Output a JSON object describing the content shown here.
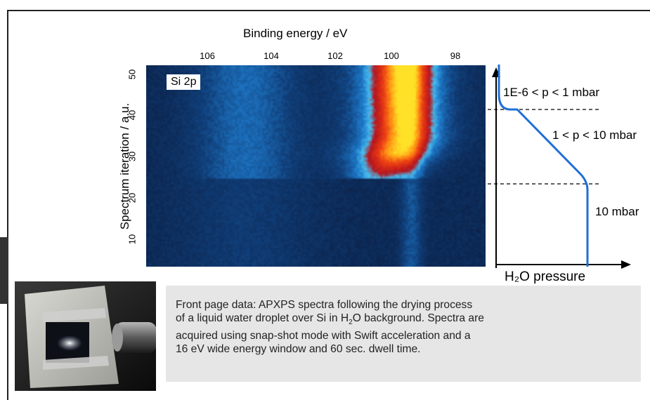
{
  "chart_data": [
    {
      "type": "heatmap",
      "xlabel": "Binding energy / eV",
      "ylabel": "Spectrum iteration / a.u.",
      "x_ticks": [
        106,
        104,
        102,
        100,
        98
      ],
      "y_ticks": [
        10,
        20,
        30,
        40,
        50
      ],
      "xlim": [
        107.3,
        96.7
      ],
      "ylim": [
        4,
        52
      ],
      "annotation": "Si 2p",
      "features": [
        {
          "type": "peak",
          "center_eV": 99.4,
          "iterations": [
            25,
            52
          ],
          "intensity": "high"
        },
        {
          "type": "broad_band",
          "center_eV": 104.2,
          "iterations": [
            25,
            52
          ],
          "intensity": "low"
        },
        {
          "type": "edge",
          "eV": 99.0,
          "iterations": [
            4,
            52
          ],
          "intensity": "low"
        }
      ],
      "colormap": "dark blue to cyan to red to yellow"
    },
    {
      "type": "line",
      "xlabel": "H₂O pressure",
      "ylabel": "",
      "regions": [
        {
          "label": "1E-6 < p < 1 mbar"
        },
        {
          "label": "1 < p < 10 mbar"
        },
        {
          "label": "10 mbar"
        }
      ],
      "color": "#1f6fd6"
    }
  ],
  "caption": {
    "line1": "Front page data: APXPS spectra following the drying process",
    "line2a": "of a liquid water droplet over Si in H",
    "line2sub": "2",
    "line2b": "O background. Spectra are",
    "line3": "acquired using snap-shot mode with Swift acceleration and a",
    "line4": "16 eV wide energy window and 60 sec. dwell time."
  }
}
